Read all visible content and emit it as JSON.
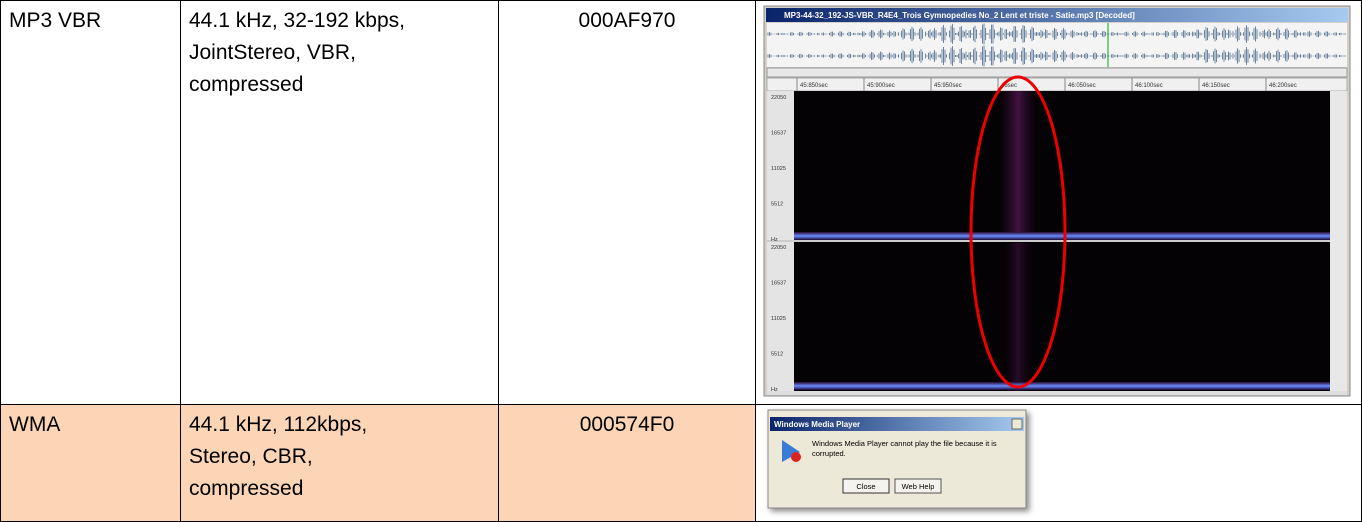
{
  "table": {
    "rows": [
      {
        "cells": [
          [
            "MP3 VBR"
          ],
          [
            "44.1 kHz, 32-192 kbps,",
            "JointStereo, VBR,",
            "compressed"
          ],
          [
            "000AF970"
          ]
        ]
      },
      {
        "cells": [
          [
            "WMA"
          ],
          [
            "44.1 kHz, 112kbps,",
            "Stereo, CBR,",
            "compressed"
          ],
          [
            "000574F0"
          ]
        ]
      }
    ]
  },
  "spectrogram": {
    "title": "MP3-44-32_192-JS-VBR_R4E4_Trois Gymnopedies No_2 Lent et triste - Satie.mp3 [Decoded]",
    "time_labels": [
      "45:850sec",
      "45:900sec",
      "45:950sec",
      "46sec",
      "46:050sec",
      "46:100sec",
      "46:150sec",
      "46:200sec"
    ],
    "freq_labels": [
      "22050",
      "16537",
      "11025",
      "5512",
      "Hz"
    ]
  },
  "dialog": {
    "title": "Windows Media Player",
    "message": [
      "Windows Media Player cannot play the file because it is",
      "corrupted."
    ],
    "buttons": [
      "Close",
      "Web Help"
    ]
  }
}
